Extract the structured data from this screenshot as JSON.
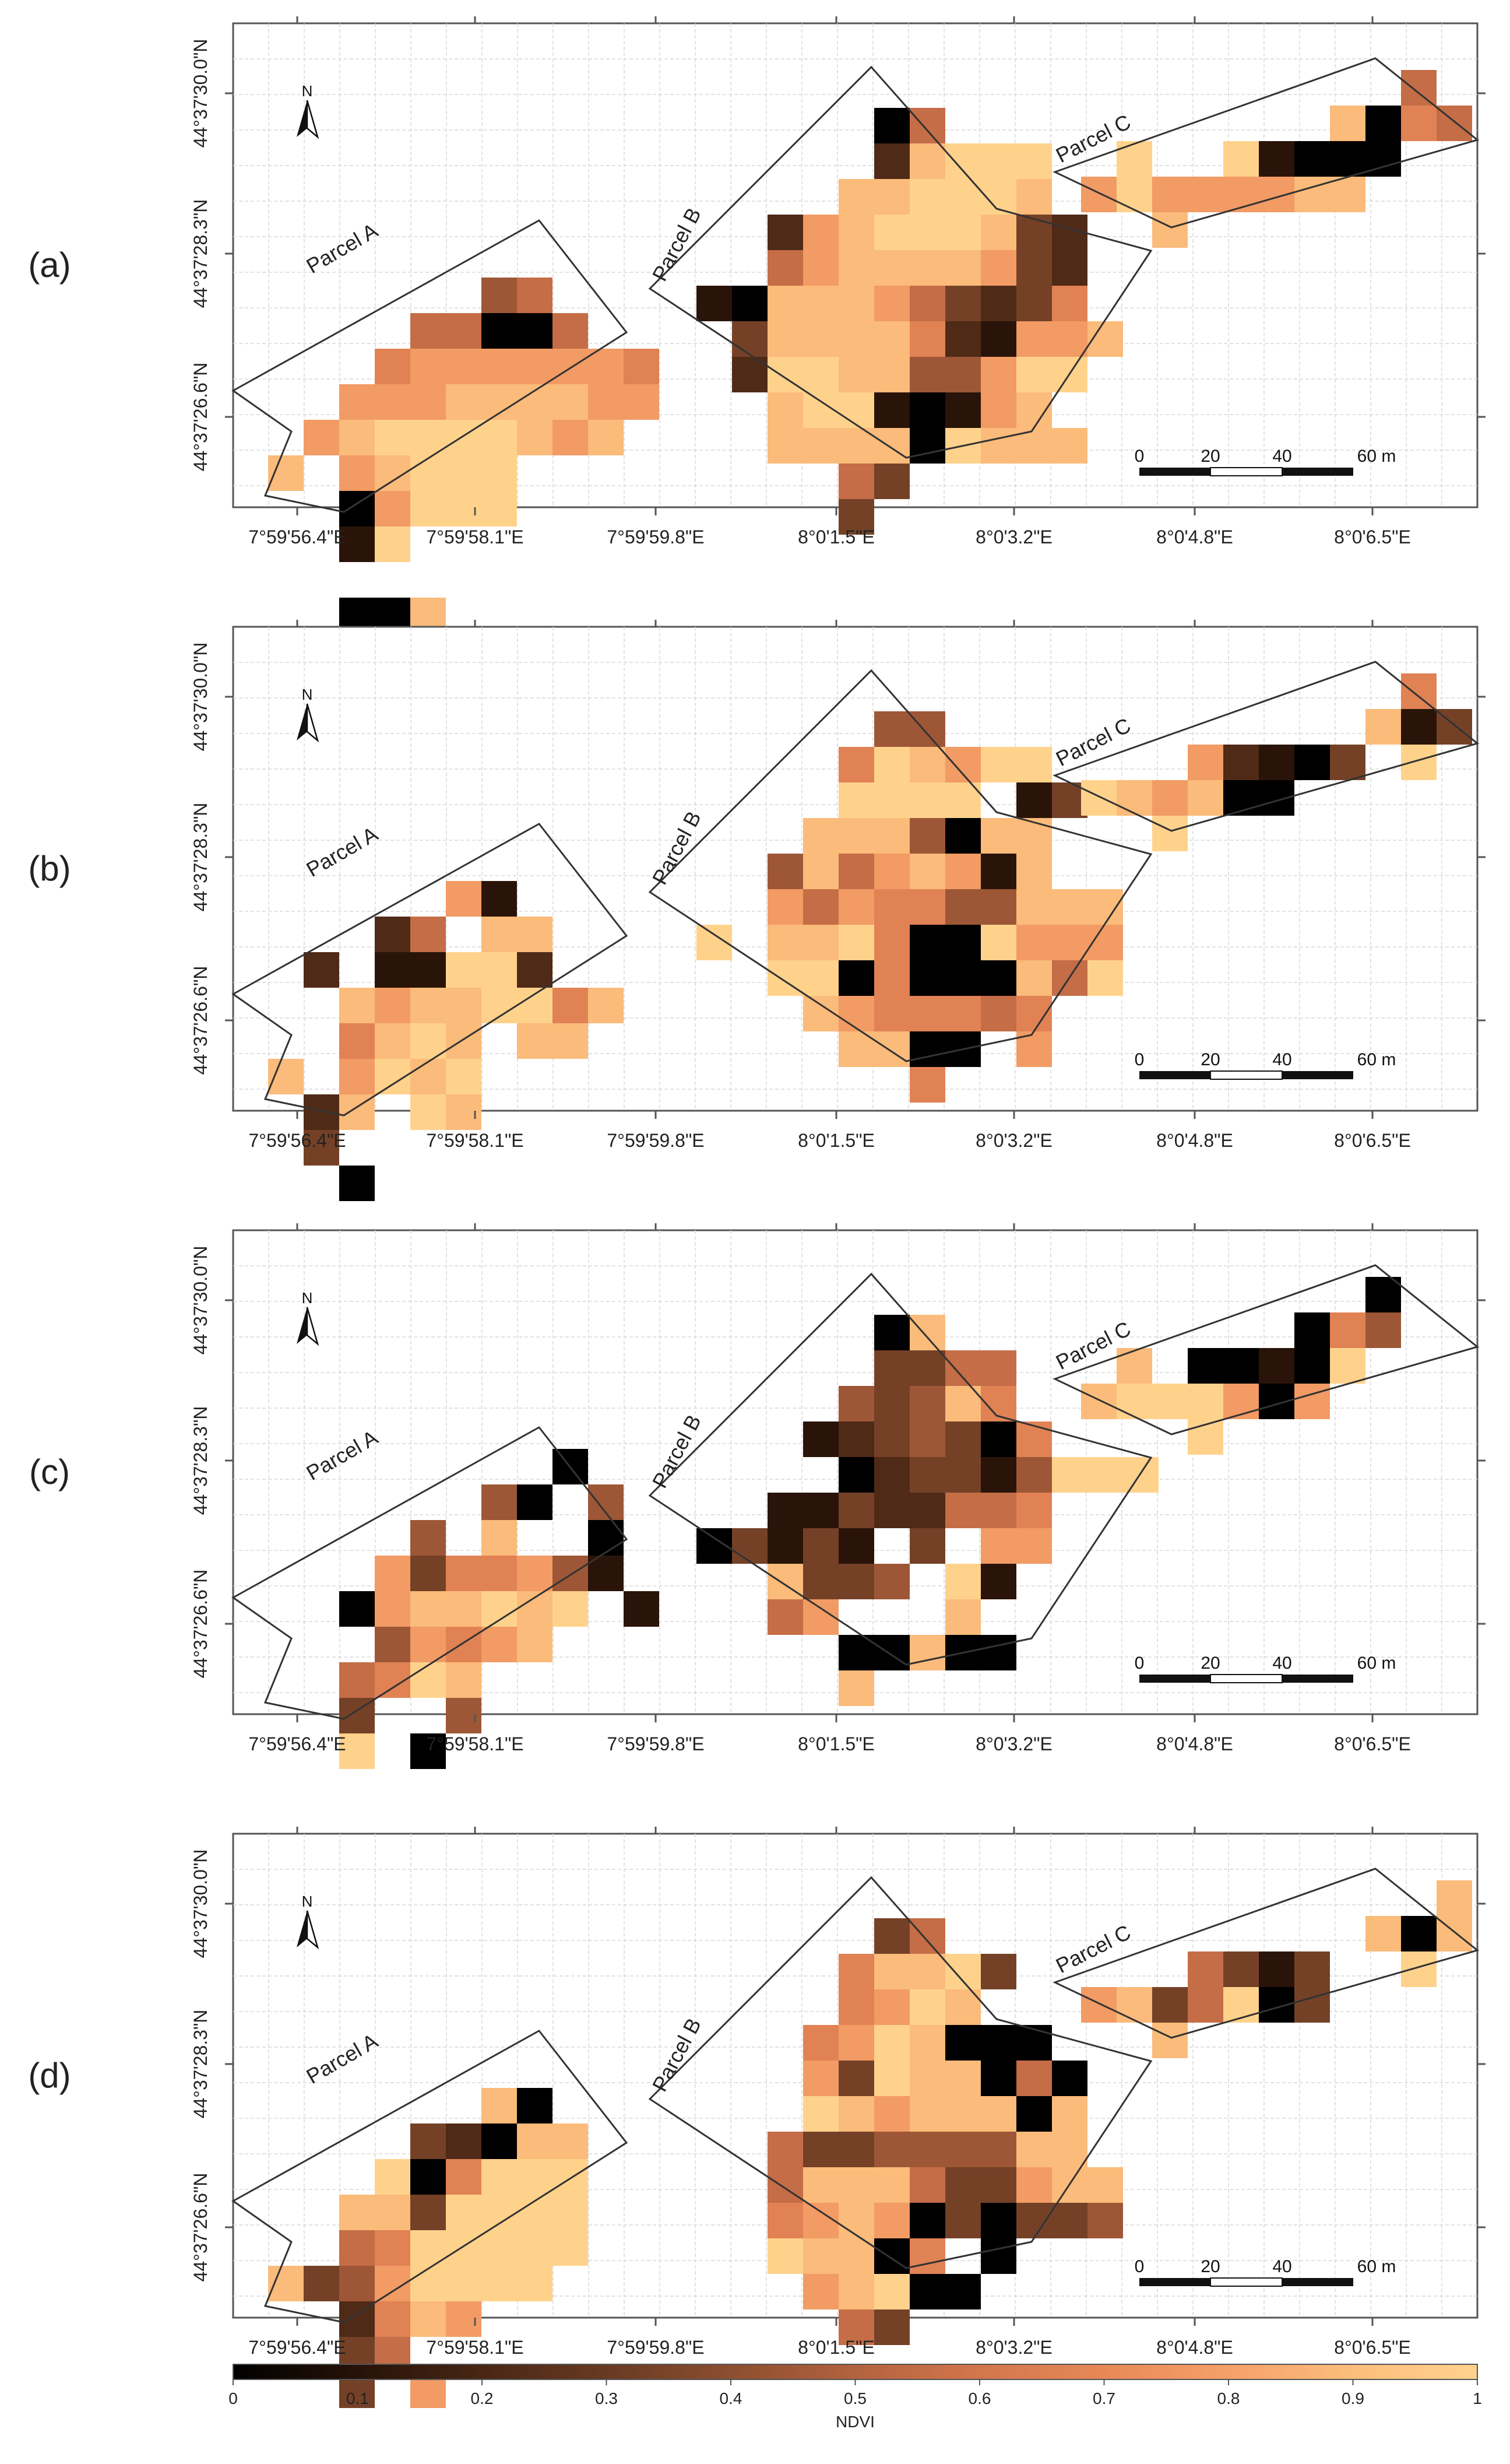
{
  "panels": [
    {
      "label": "(a)",
      "cells": [
        "......................................",
        "......................................",
        "......................................",
        "............................................",
        "...........................................",
        "...........................................",
        "...........................................",
        "..........................................",
        "...........................................",
        "...........................................",
        "...........................................",
        "...........................................",
        "..........................................."
      ],
      "grid": [
        "..........................................",
        "...........................................",
        ".......................................6.",
        "........................0.3.2.5....................................",
        "...........................................",
        "..........................................."
      ]
    }
  ],
  "labels": {
    "parcel_a": "Parcel A",
    "parcel_b": "Parcel B",
    "parcel_c": "Parcel C",
    "north": "N",
    "scale_ticks": [
      "0",
      "20",
      "40",
      "60 m"
    ]
  },
  "axes": {
    "x_ticks": [
      "7°59'56.4\"E",
      "7°59'58.1\"E",
      "7°59'59.8\"E",
      "8°0'1.5\"E",
      "8°0'3.2\"E",
      "8°0'4.8\"E",
      "8°0'6.5\"E"
    ],
    "y_ticks": [
      "44°37'30.0\"N",
      "44°37'28.3\"N",
      "44°37'26.6\"N"
    ]
  },
  "panel_labels": [
    "(a)",
    "(b)",
    "(c)",
    "(d)"
  ],
  "colorbar": {
    "title": "NDVI",
    "ticks": [
      "0",
      "0.1",
      "0.2",
      "0.3",
      "0.4",
      "0.5",
      "0.6",
      "0.7",
      "0.8",
      "0.9",
      "1"
    ],
    "colors": [
      "#000000",
      "#3a1d0f",
      "#6e3e25",
      "#a35f3d",
      "#d07b52",
      "#ee9061",
      "#fbb277",
      "#ffce82"
    ]
  },
  "ndvi_maps": [
    {
      "parcel_a": [
        "..........",
        "......45..",
        "....55005..",
        "...67777776..",
        "..777888877...",
        ".789999878....",
        "8.78999......",
        "..07999......",
        "..19........",
        ".......",
        "..008......"
      ],
      "parcel_b": [
        ".....05..",
        ".....28999..",
        "....889998..",
        "..278999832..",
        "..578888732..",
        "10888753236..",
        ".38888621778...",
        ".2998844799...",
        "..89910178...",
        "..888809888..",
        "....53....",
        "....3....."
      ],
      "parcel_c": [
        ".........5.",
        ".......8065",
        ".9..91000...",
        "79777788",
        "..8....."
      ]
    },
    {
      "parcel_a": [
        ".........",
        ".....71..",
        "...25.88.",
        ".2.11992..",
        "..87889968.",
        "..6898.88...",
        "8.7989.....",
        ".28.98.....",
        ".3........",
        "..0......"
      ],
      "parcel_b": [
        ".....44..",
        "....698799...",
        "....9999.13...",
        "...8884088...",
        "..48578718...",
        "..7576644888..",
        "9.8896009777...",
        "..9906000859..",
        "...8766656....",
        "....8800.7...",
        "......6..."
      ],
      "parcel_c": [
        ".........6.",
        "........813",
        "...72103.9",
        "987800...",
        "..9......"
      ]
    },
    {
      "parcel_a": [
        "........0...",
        "......40.4..",
        "....4.8..0..",
        "...7366741.",
        "..0788989.1...",
        "...47678.....",
        "..5698......",
        "..3..4......",
        "..9.0......"
      ],
      "parcel_b": [
        ".....08..",
        ".....3355..",
        "....43486..",
        "...1234306..",
        "....023314999",
        "..11322556....",
        "03131.3.77....",
        "..8334.91..",
        "..57...8..",
        "....00800...",
        "....8...."
      ],
      "parcel_c": [
        "........0..",
        "......064.",
        ".8.00109.",
        "8999707...",
        "...9.."
      ]
    },
    {
      "parcel_a": [
        "...........",
        "......80..",
        "....32088..",
        "...906999..",
        "..8839999...",
        "..5699999....",
        "83479999.....",
        "..2687......",
        "..35.......",
        "..3.7......"
      ],
      "parcel_b": [
        ".....35..",
        "....68893..",
        "....6798..",
        "...6798000..",
        "...73988050..",
        "...98788808..",
        "..533444488...",
        "..5888533788..",
        "..6787030334..",
        "..98806.0....",
        "...78900.....",
        "....53......"
      ],
      "parcel_c": [
        "..........8.",
        "........808",
        "...5313..9",
        "7835903....",
        "..8......"
      ]
    }
  ]
}
